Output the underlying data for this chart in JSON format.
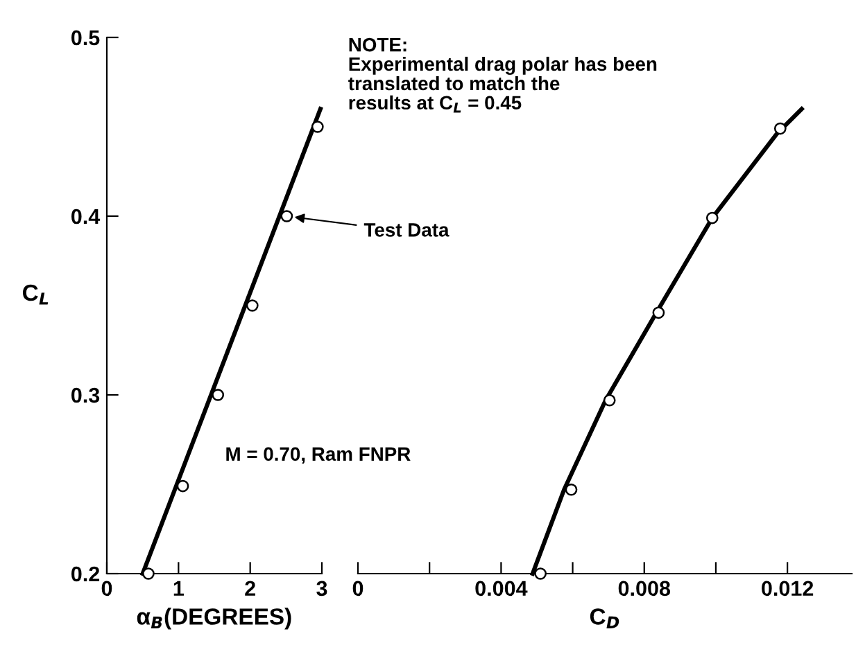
{
  "chart_data": [
    {
      "type": "line",
      "xlabel": "α$_{B}$(DEGREES)",
      "ylabel": "C$_{L}$",
      "xlim": [
        0,
        3
      ],
      "ylim": [
        0.2,
        0.5
      ],
      "xticks": [
        0,
        1,
        2,
        3
      ],
      "yticks": [
        0.2,
        0.3,
        0.4,
        0.5
      ],
      "grid": false,
      "legend": "right",
      "annotations": [
        "M = 0.70, Ram FNPR"
      ],
      "series": [
        {
          "type": "line",
          "color": "#000000",
          "marker": "none",
          "x": [
            0.5,
            2.98
          ],
          "values": [
            0.2,
            0.46
          ]
        },
        {
          "type": "scatter",
          "name": "Test Data",
          "color": "#000000",
          "marker": "circle",
          "x": [
            0.58,
            1.06,
            1.55,
            2.03,
            2.51,
            2.94
          ],
          "values": [
            0.2,
            0.249,
            0.3,
            0.35,
            0.4,
            0.45
          ]
        }
      ]
    },
    {
      "type": "line",
      "xlabel": "C$_{D}$",
      "xlim": [
        0,
        0.0138
      ],
      "ylim": [
        0.2,
        0.5
      ],
      "xticks": [
        0,
        {
          "value": 0.002,
          "label": null
        },
        0.004,
        {
          "value": 0.006,
          "label": null
        },
        0.008,
        {
          "value": 0.01,
          "label": null
        },
        0.012
      ],
      "tick_labels": "x",
      "grid": false,
      "annotations": [
        "NOTE:\nExperimental drag polar has been\ntranslated to match the\nresults at C$_{L}$ = 0.45"
      ],
      "series": [
        {
          "type": "line",
          "color": "#000000",
          "marker": "none",
          "x": [
            0.00488,
            0.00576,
            0.00692,
            0.00834,
            0.0099,
            0.0117,
            0.0124
          ],
          "values": [
            0.2,
            0.247,
            0.297,
            0.346,
            0.399,
            0.446,
            0.46
          ]
        },
        {
          "type": "scatter",
          "color": "#000000",
          "marker": "circle",
          "x": [
            0.0051,
            0.00596,
            0.00703,
            0.0084,
            0.0099,
            0.0118
          ],
          "values": [
            0.2,
            0.247,
            0.297,
            0.346,
            0.399,
            0.449
          ]
        }
      ]
    }
  ]
}
